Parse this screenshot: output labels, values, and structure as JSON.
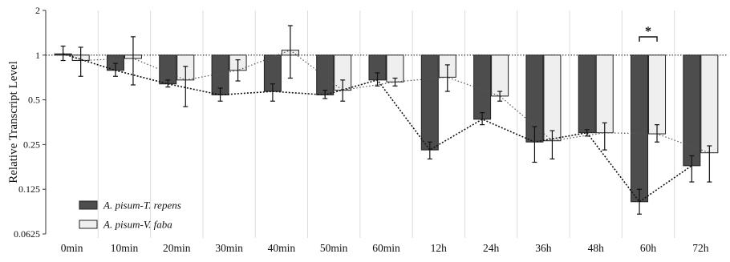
{
  "chart_data": {
    "type": "bar",
    "title": "",
    "xlabel": "",
    "ylabel": "Relative Transcript Level",
    "y_scale": "log2",
    "ylim": [
      0.0625,
      2
    ],
    "yticks": [
      {
        "value": 2,
        "label": "2"
      },
      {
        "value": 1,
        "label": "1"
      },
      {
        "value": 0.5,
        "label": "0.5"
      },
      {
        "value": 0.25,
        "label": "0.25"
      },
      {
        "value": 0.125,
        "label": "0.125"
      },
      {
        "value": 0.0625,
        "label": "0.0625"
      }
    ],
    "reference_line": 1,
    "grid": "vertical separators between groups",
    "legend_position": "bottom-left",
    "categories": [
      "0min",
      "10min",
      "20min",
      "30min",
      "40min",
      "50min",
      "60min",
      "12h",
      "24h",
      "36h",
      "48h",
      "60h",
      "72h"
    ],
    "series": [
      {
        "name": "A. pisum-T. repens",
        "color": "#4d4d4d",
        "values": [
          1.02,
          0.79,
          0.64,
          0.54,
          0.57,
          0.54,
          0.68,
          0.23,
          0.37,
          0.26,
          0.3,
          0.103,
          0.18
        ],
        "err_low": [
          0.92,
          0.72,
          0.61,
          0.49,
          0.49,
          0.51,
          0.62,
          0.2,
          0.34,
          0.19,
          0.285,
          0.085,
          0.14
        ],
        "err_high": [
          1.15,
          0.88,
          0.68,
          0.6,
          0.64,
          0.58,
          0.76,
          0.26,
          0.41,
          0.33,
          0.315,
          0.125,
          0.21
        ]
      },
      {
        "name": "A. pisum-V. faba",
        "color": "#efefef",
        "values": [
          0.92,
          0.95,
          0.68,
          0.79,
          1.08,
          0.58,
          0.66,
          0.71,
          0.53,
          0.265,
          0.3,
          0.295,
          0.22
        ],
        "err_low": [
          0.72,
          0.63,
          0.45,
          0.67,
          0.7,
          0.49,
          0.62,
          0.57,
          0.49,
          0.2,
          0.23,
          0.26,
          0.14
        ],
        "err_high": [
          1.13,
          1.33,
          0.84,
          0.93,
          1.58,
          0.68,
          0.7,
          0.86,
          0.57,
          0.31,
          0.35,
          0.34,
          0.245
        ]
      }
    ],
    "annotations": [
      {
        "text": "*",
        "category": "60h"
      }
    ]
  }
}
